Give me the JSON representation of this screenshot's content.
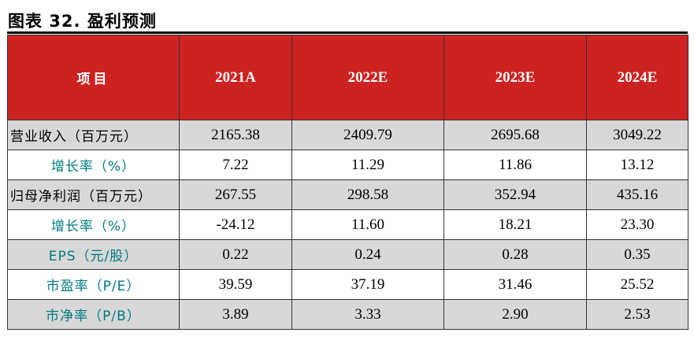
{
  "title": "图表 32. 盈利预测",
  "headers": [
    "项目",
    "2021A",
    "2022E",
    "2023E",
    "2024E"
  ],
  "rows": [
    {
      "label": "营业收入（百万元）",
      "values": [
        "2165.38",
        "2409.79",
        "2695.68",
        "3049.22"
      ]
    },
    {
      "label": "增长率（%）",
      "values": [
        "7.22",
        "11.29",
        "11.86",
        "13.12"
      ]
    },
    {
      "label": "归母净利润（百万元）",
      "values": [
        "267.55",
        "298.58",
        "352.94",
        "435.16"
      ]
    },
    {
      "label": "增长率（%）",
      "values": [
        "-24.12",
        "11.60",
        "18.21",
        "23.30"
      ]
    },
    {
      "label": "EPS（元/股）",
      "values": [
        "0.22",
        "0.24",
        "0.28",
        "0.35"
      ]
    },
    {
      "label": "市盈率（P/E）",
      "values": [
        "39.59",
        "37.19",
        "31.46",
        "25.52"
      ]
    },
    {
      "label": "市净率（P/B）",
      "values": [
        "3.89",
        "3.33",
        "2.90",
        "2.53"
      ]
    }
  ],
  "colors": {
    "header_bg": "#cc2222",
    "header_text": "#ffffff",
    "stripe_gray": "#d8d8d8",
    "label_accent": "#007a80"
  }
}
